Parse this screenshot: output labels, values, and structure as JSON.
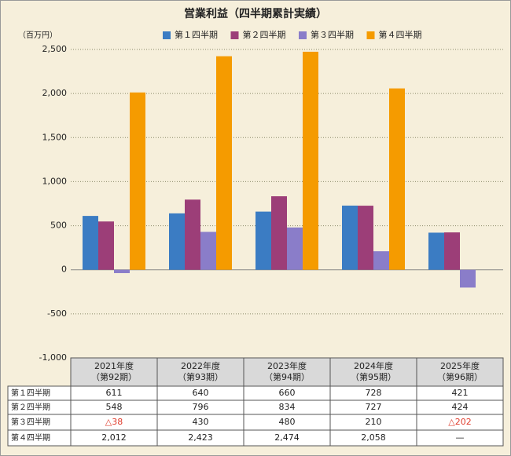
{
  "chart_data": {
    "type": "bar",
    "title": "営業利益（四半期累計実績）",
    "y_unit": "（百万円）",
    "categories": [
      [
        "2021年度",
        "（第92期）"
      ],
      [
        "2022年度",
        "（第93期）"
      ],
      [
        "2023年度",
        "（第94期）"
      ],
      [
        "2024年度",
        "（第95期）"
      ],
      [
        "2025年度",
        "（第96期）"
      ]
    ],
    "series": [
      {
        "name": "第１四半期",
        "color": "#3b7cc3",
        "values": [
          611,
          640,
          660,
          728,
          421
        ]
      },
      {
        "name": "第２四半期",
        "color": "#9c3e78",
        "values": [
          548,
          796,
          834,
          727,
          424
        ]
      },
      {
        "name": "第３四半期",
        "color": "#8a7dc9",
        "values": [
          -38,
          430,
          480,
          210,
          -202
        ],
        "value_labels": [
          "△38",
          "430",
          "480",
          "210",
          "△202"
        ]
      },
      {
        "name": "第４四半期",
        "color": "#f59b00",
        "values": [
          2012,
          2423,
          2474,
          2058,
          null
        ],
        "value_labels": [
          "2,012",
          "2,423",
          "2,474",
          "2,058",
          "—"
        ]
      }
    ],
    "ylim": [
      -1000,
      2500
    ],
    "yticks": [
      {
        "value": -1000,
        "label": "-1,000"
      },
      -500,
      0,
      500,
      {
        "value": 1000,
        "label": "1,000"
      },
      {
        "value": 1500,
        "label": "1,500"
      },
      {
        "value": 2000,
        "label": "2,000"
      },
      {
        "value": 2500,
        "label": "2,500"
      }
    ],
    "grid": true
  }
}
